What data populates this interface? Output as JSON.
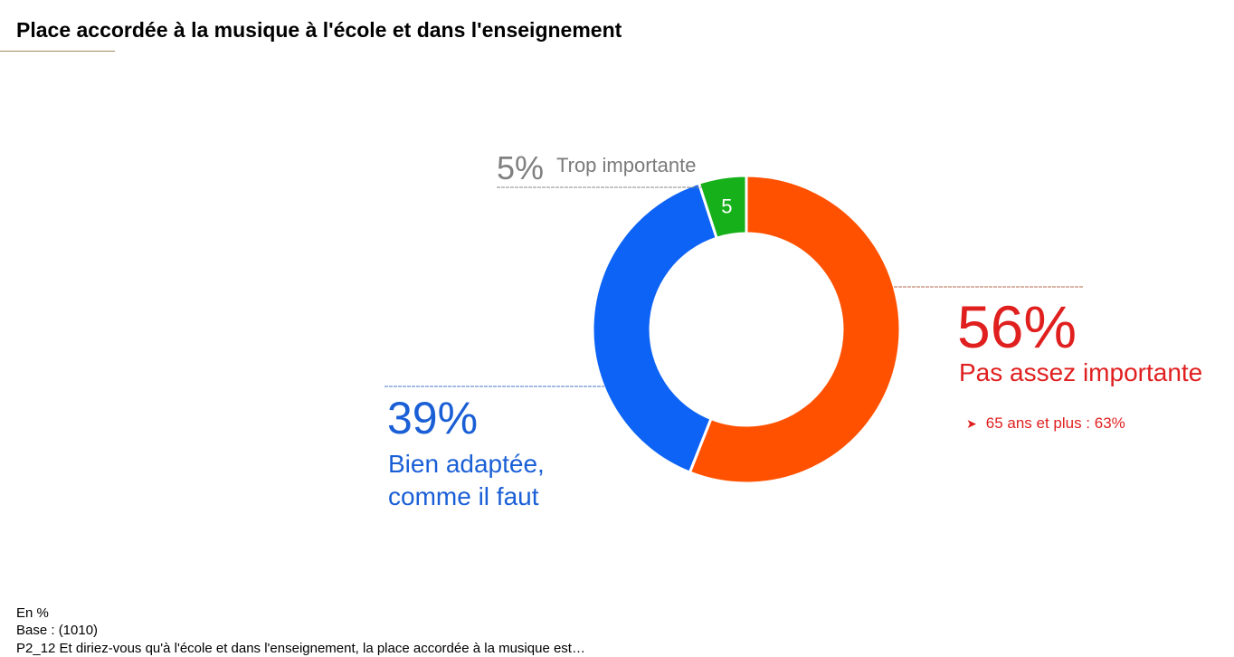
{
  "title": "Place accordée à la musique à l'école et dans l'enseignement",
  "colors": {
    "pas_assez": "#ff5100",
    "bien_adaptee": "#0d63f5",
    "trop": "#16b01a",
    "red_text": "#e01f1f",
    "blue_text": "#1a5fd6",
    "grey_text": "#7a7a7a"
  },
  "labels": {
    "trop": {
      "pct": "5%",
      "text": "Trop importante"
    },
    "pas_assez": {
      "pct": "56%",
      "text": "Pas assez importante",
      "sub": "65 ans et plus : 63%"
    },
    "bien": {
      "pct": "39%",
      "line1": "Bien adaptée,",
      "line2": "comme il faut"
    }
  },
  "icons": {
    "bullet": "arrow-bullet-icon"
  },
  "footer": {
    "unit": "En %",
    "base": "Base : (1010)",
    "question": "P2_12 Et diriez-vous qu'à l'école et dans l'enseignement, la place accordée à la musique est…"
  },
  "chart_data": {
    "type": "pie",
    "title": "Place accordée à la musique à l'école et dans l'enseignement",
    "slices": [
      {
        "label": "Pas assez importante",
        "value": 56,
        "color": "#ff5100"
      },
      {
        "label": "Bien adaptée, comme il faut",
        "value": 39,
        "color": "#0d63f5"
      },
      {
        "label": "Trop importante",
        "value": 5,
        "color": "#16b01a",
        "inner_label": "5"
      }
    ],
    "donut": true
  }
}
